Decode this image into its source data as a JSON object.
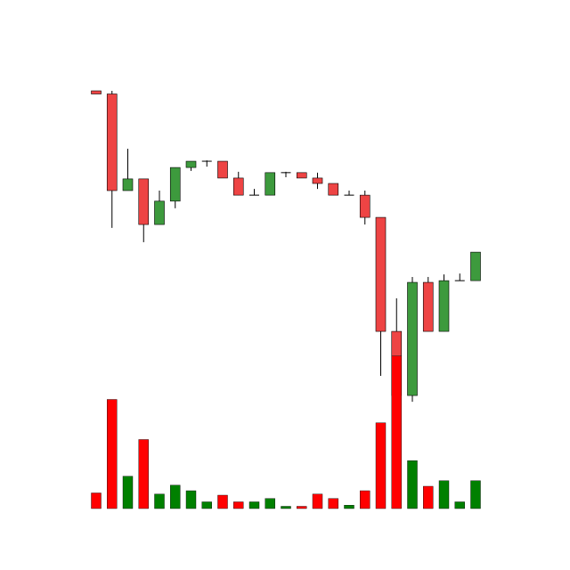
{
  "chart_data": {
    "type": "candlestick",
    "title": "",
    "xlabel": "",
    "ylabel": "",
    "ylim": [
      0,
      100
    ],
    "volume_max": 100,
    "grid": false,
    "up_color": "#3d9a3d",
    "down_color": "#ee4444",
    "volume_up_color": "#008000",
    "volume_down_color": "#ff0000",
    "candles": [
      {
        "open": 100.0,
        "close": 98.9,
        "high": 100.0,
        "low": 98.9,
        "volume": 14
      },
      {
        "open": 98.9,
        "close": 65.0,
        "high": 100.0,
        "low": 51.9,
        "volume": 98
      },
      {
        "open": 65.0,
        "close": 69.1,
        "high": 79.7,
        "low": 65.0,
        "volume": 29
      },
      {
        "open": 69.1,
        "close": 53.1,
        "high": 69.1,
        "low": 46.9,
        "volume": 62
      },
      {
        "open": 53.1,
        "close": 61.3,
        "high": 65.0,
        "low": 53.1,
        "volume": 13
      },
      {
        "open": 61.3,
        "close": 73.1,
        "high": 73.1,
        "low": 58.8,
        "volume": 21
      },
      {
        "open": 73.1,
        "close": 75.3,
        "high": 75.3,
        "low": 71.9,
        "volume": 16
      },
      {
        "open": 75.3,
        "close": 75.3,
        "high": 75.6,
        "low": 73.4,
        "volume": 6
      },
      {
        "open": 75.3,
        "close": 69.4,
        "high": 75.3,
        "low": 69.4,
        "volume": 12
      },
      {
        "open": 69.4,
        "close": 63.4,
        "high": 71.6,
        "low": 63.4,
        "volume": 6
      },
      {
        "open": 63.4,
        "close": 63.4,
        "high": 65.6,
        "low": 63.4,
        "volume": 6
      },
      {
        "open": 63.4,
        "close": 71.3,
        "high": 71.3,
        "low": 63.4,
        "volume": 9
      },
      {
        "open": 71.3,
        "close": 71.3,
        "high": 71.6,
        "low": 69.7,
        "volume": 2
      },
      {
        "open": 71.3,
        "close": 69.4,
        "high": 71.3,
        "low": 69.4,
        "volume": 2
      },
      {
        "open": 69.4,
        "close": 67.5,
        "high": 71.3,
        "low": 65.6,
        "volume": 13
      },
      {
        "open": 67.5,
        "close": 63.4,
        "high": 67.5,
        "low": 63.4,
        "volume": 9
      },
      {
        "open": 63.4,
        "close": 63.4,
        "high": 65.0,
        "low": 63.4,
        "volume": 3
      },
      {
        "open": 63.4,
        "close": 55.6,
        "high": 65.0,
        "low": 53.1,
        "volume": 16
      },
      {
        "open": 55.6,
        "close": 15.6,
        "high": 55.6,
        "low": 0.0,
        "volume": 77
      },
      {
        "open": 15.6,
        "close": -6.9,
        "high": 27.2,
        "low": -6.9,
        "volume": 137
      },
      {
        "open": -6.9,
        "close": 32.8,
        "high": 34.7,
        "low": -9.1,
        "volume": 43
      },
      {
        "open": 32.8,
        "close": 15.6,
        "high": 34.7,
        "low": 15.6,
        "volume": 20
      },
      {
        "open": 15.6,
        "close": 33.4,
        "high": 35.6,
        "low": 15.6,
        "volume": 25
      },
      {
        "open": 33.4,
        "close": 33.4,
        "high": 35.9,
        "low": 33.4,
        "volume": 6
      },
      {
        "open": 33.4,
        "close": 43.4,
        "high": 43.4,
        "low": 33.4,
        "volume": 25
      }
    ]
  }
}
